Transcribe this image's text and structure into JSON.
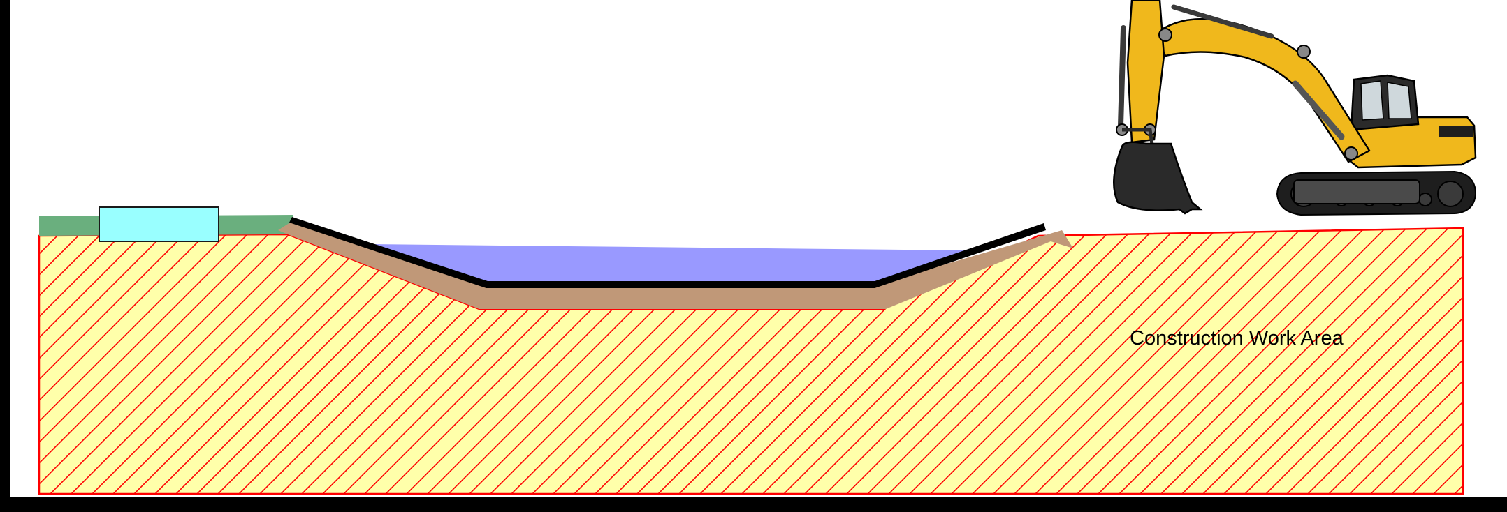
{
  "labels": {
    "work_area": "Construction Work Area"
  },
  "colors": {
    "frame": "#000000",
    "background": "#ffffff",
    "work_area_fill": "#ffffaa",
    "hatch_stroke": "#ff0000",
    "grass": "#6aaf7e",
    "structure_box": "#99ffff",
    "soil_layer": "#c09878",
    "water": "#9999ff",
    "liner": "#000000",
    "excavator_body": "#f0b81c",
    "excavator_dark": "#1e1e1e"
  },
  "icons": {
    "machine": "excavator-icon"
  }
}
